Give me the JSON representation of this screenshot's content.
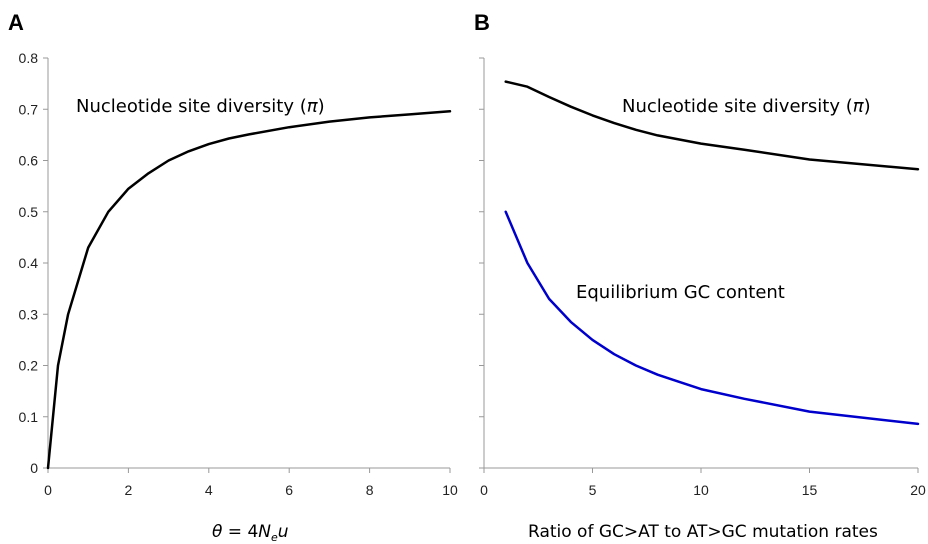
{
  "chart_data": [
    {
      "panel": "A",
      "type": "line",
      "xlabel": "θ = 4Neu",
      "xlabel_parts": {
        "pre": "θ",
        "eq": " = 4",
        "n": "N",
        "sub": "e",
        "u": "u"
      },
      "ylabel": "",
      "xlim": [
        0,
        10
      ],
      "ylim": [
        0,
        0.8
      ],
      "xticks": [
        0,
        2,
        4,
        6,
        8,
        10
      ],
      "yticks": [
        0,
        0.1,
        0.2,
        0.3,
        0.4,
        0.5,
        0.6,
        0.7,
        0.8
      ],
      "ytick_labels": [
        "0",
        "0.1",
        "0.2",
        "0.3",
        "0.4",
        "0.5",
        "0.6",
        "0.7",
        "0.8"
      ],
      "grid": false,
      "series": [
        {
          "name": "Nucleotide site diversity (π)",
          "label_parts": {
            "text": "Nucleotide site diversity (",
            "sym": "π",
            "close": ")"
          },
          "color": "#000000",
          "x": [
            0,
            0.25,
            0.5,
            1,
            1.5,
            2,
            2.5,
            3,
            3.5,
            4,
            4.5,
            5,
            6,
            7,
            8,
            9,
            10
          ],
          "y": [
            0,
            0.2,
            0.3,
            0.43,
            0.5,
            0.545,
            0.575,
            0.6,
            0.618,
            0.632,
            0.643,
            0.651,
            0.665,
            0.676,
            0.684,
            0.69,
            0.696
          ]
        }
      ]
    },
    {
      "panel": "B",
      "type": "line",
      "xlabel": "Ratio of GC>AT to AT>GC mutation rates",
      "ylabel": "",
      "xlim": [
        0,
        20
      ],
      "ylim": [
        0,
        0.8
      ],
      "xticks": [
        0,
        5,
        10,
        15,
        20
      ],
      "grid": false,
      "series": [
        {
          "name": "Nucleotide site diversity (π)",
          "label_parts": {
            "text": "Nucleotide site diversity (",
            "sym": "π",
            "close": ")"
          },
          "color": "#000000",
          "x": [
            1,
            2,
            3,
            4,
            5,
            6,
            7,
            8,
            10,
            12,
            15,
            20
          ],
          "y": [
            0.754,
            0.744,
            0.724,
            0.705,
            0.688,
            0.673,
            0.66,
            0.649,
            0.633,
            0.621,
            0.602,
            0.583
          ]
        },
        {
          "name": "Equilibrium GC content",
          "color": "#0000cc",
          "x": [
            1,
            2,
            3,
            4,
            5,
            6,
            7,
            8,
            10,
            12,
            15,
            20
          ],
          "y": [
            0.5,
            0.4,
            0.33,
            0.285,
            0.25,
            0.222,
            0.2,
            0.182,
            0.154,
            0.135,
            0.11,
            0.086
          ]
        }
      ]
    }
  ]
}
